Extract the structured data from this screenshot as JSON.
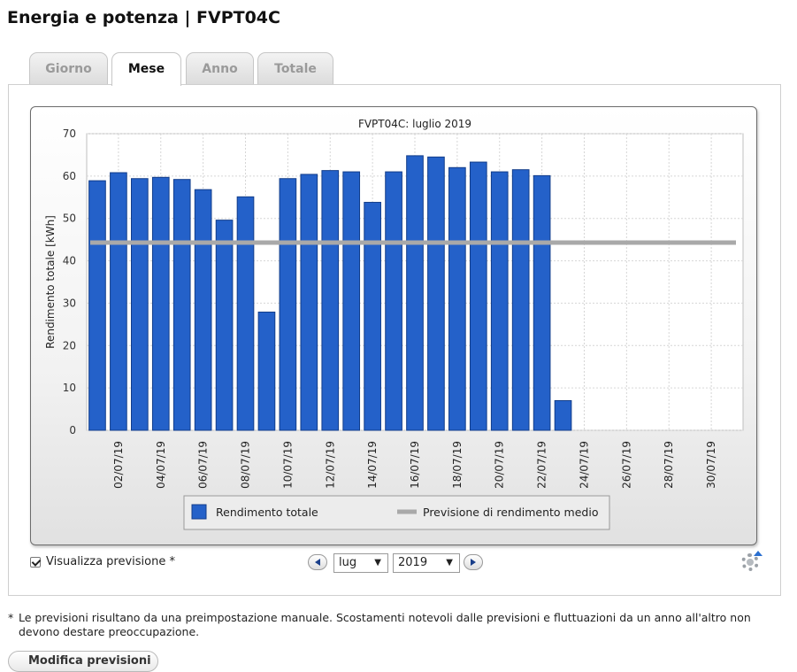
{
  "page": {
    "title": "Energia e potenza | FVPT04C"
  },
  "tabs": [
    {
      "label": "Giorno",
      "active": false
    },
    {
      "label": "Mese",
      "active": true
    },
    {
      "label": "Anno",
      "active": false
    },
    {
      "label": "Totale",
      "active": false
    }
  ],
  "chart_data": {
    "type": "bar",
    "title": "FVPT04C: luglio 2019",
    "ylabel": "Rendimento totale [kWh]",
    "xlabel": "",
    "ylim": [
      0,
      70
    ],
    "yticks": [
      0,
      10,
      20,
      30,
      40,
      50,
      60,
      70
    ],
    "grid": true,
    "categories": [
      "01/07/19",
      "02/07/19",
      "03/07/19",
      "04/07/19",
      "05/07/19",
      "06/07/19",
      "07/07/19",
      "08/07/19",
      "09/07/19",
      "10/07/19",
      "11/07/19",
      "12/07/19",
      "13/07/19",
      "14/07/19",
      "15/07/19",
      "16/07/19",
      "17/07/19",
      "18/07/19",
      "19/07/19",
      "20/07/19",
      "21/07/19",
      "22/07/19",
      "23/07/19",
      "24/07/19",
      "25/07/19",
      "26/07/19",
      "27/07/19",
      "28/07/19",
      "29/07/19",
      "30/07/19",
      "31/07/19"
    ],
    "xtick_labels": [
      "02/07/19",
      "04/07/19",
      "06/07/19",
      "08/07/19",
      "10/07/19",
      "12/07/19",
      "14/07/19",
      "16/07/19",
      "18/07/19",
      "20/07/19",
      "22/07/19",
      "24/07/19",
      "26/07/19",
      "28/07/19",
      "30/07/19"
    ],
    "series": [
      {
        "name": "Rendimento totale",
        "kind": "bar",
        "color": "#2461c9",
        "values": [
          58.9,
          60.8,
          59.4,
          59.7,
          59.2,
          56.8,
          49.6,
          55.1,
          27.9,
          59.4,
          60.4,
          61.3,
          61.0,
          53.8,
          61.0,
          64.8,
          64.5,
          62.0,
          63.3,
          61.0,
          61.5,
          60.1,
          7.0,
          null,
          null,
          null,
          null,
          null,
          null,
          null,
          null
        ]
      },
      {
        "name": "Previsione di rendimento medio",
        "kind": "line",
        "color": "#a9a9a9",
        "value": 44.3
      }
    ],
    "legend_position": "bottom"
  },
  "controls": {
    "show_forecast_label": "Visualizza previsione *",
    "show_forecast_checked": true,
    "month_value": "lug",
    "year_value": "2019",
    "dropdown_arrow": "▼"
  },
  "footnote": {
    "star": "*",
    "text": "Le previsioni risultano da una preimpostazione manuale. Scostamenti notevoli dalle previsioni e fluttuazioni da un anno all'altro non devono destare preoccupazione."
  },
  "bottom_button": {
    "label": "Modifica previsioni"
  }
}
